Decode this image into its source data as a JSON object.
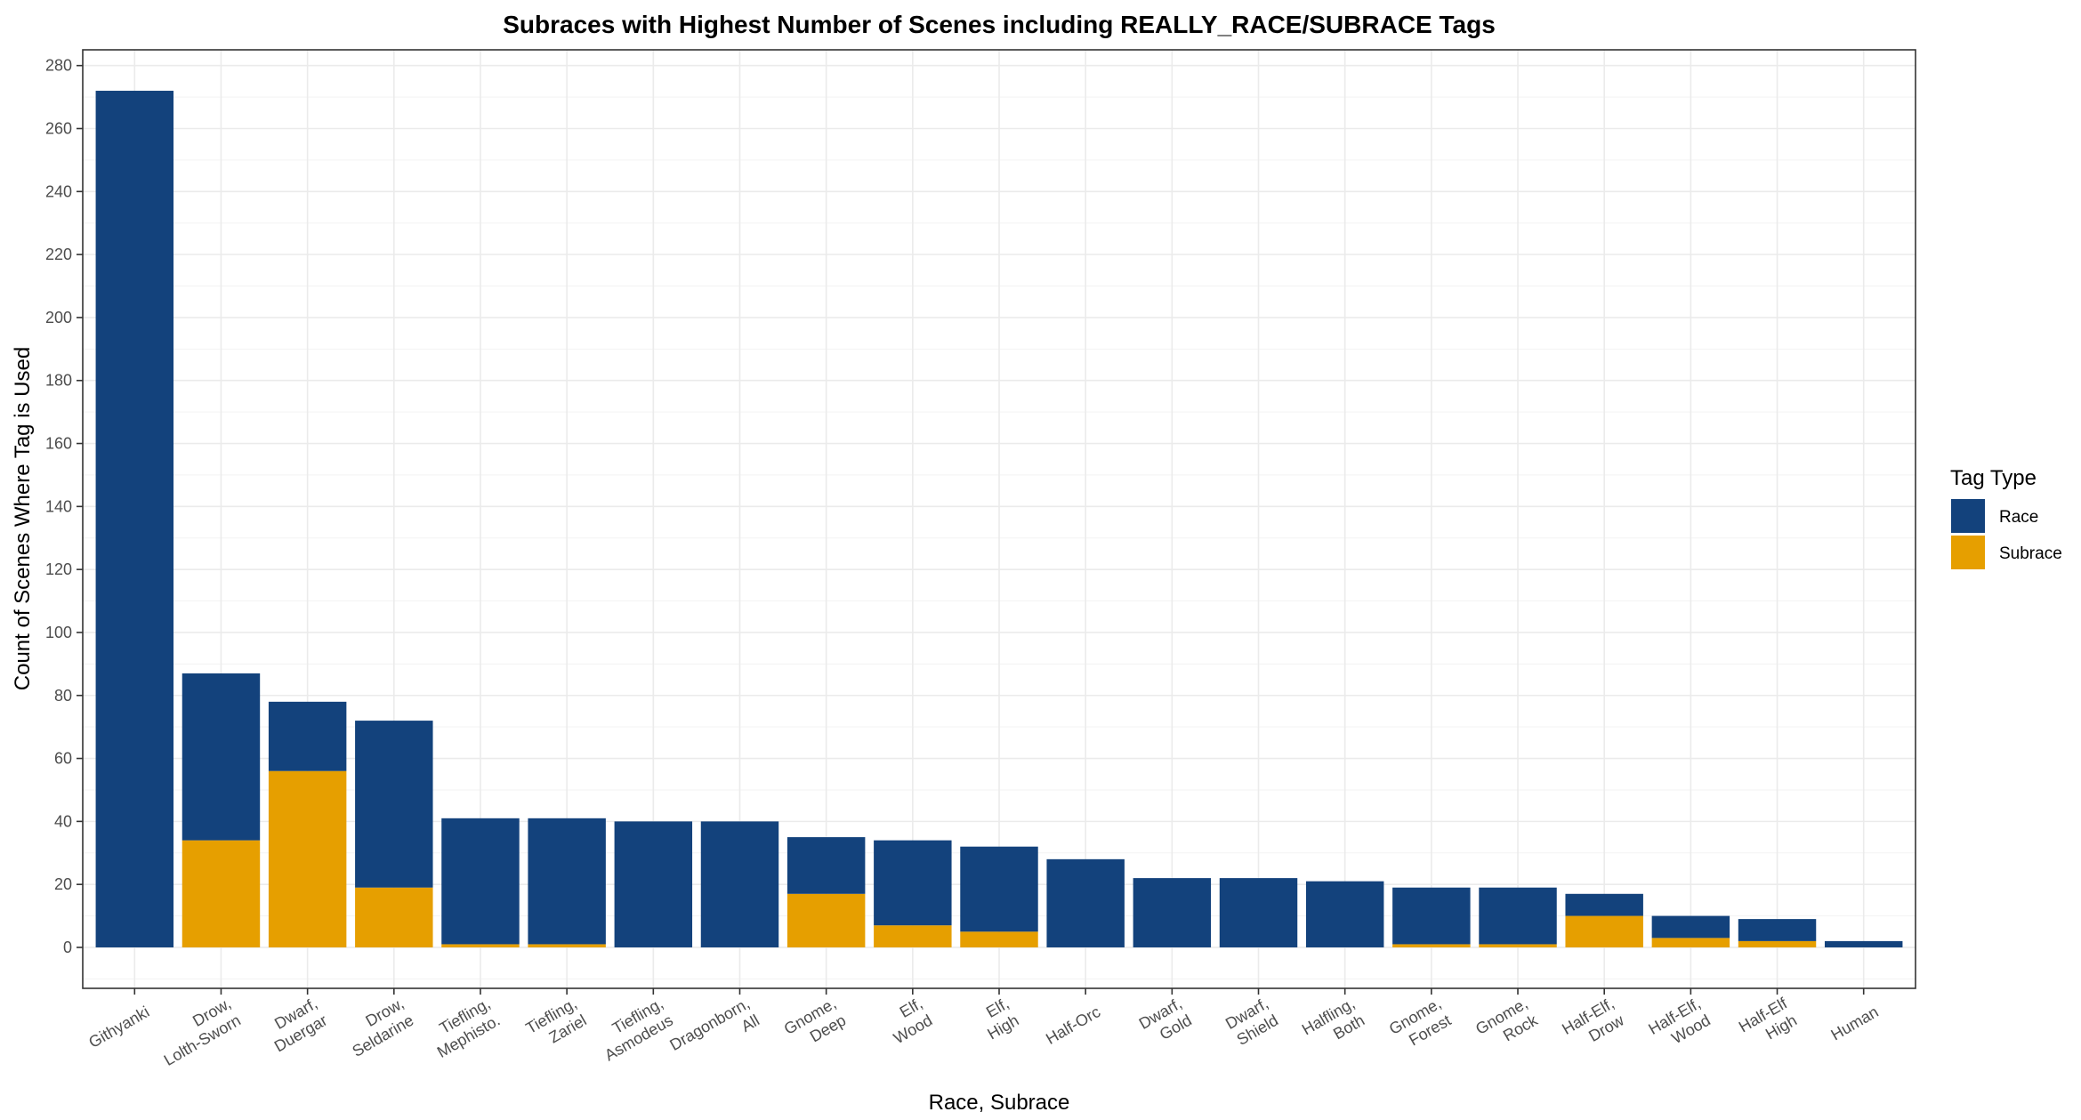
{
  "chart_data": {
    "type": "bar",
    "stacked": true,
    "title": "Subraces with Highest Number of Scenes including REALLY_RACE/SUBRACE Tags",
    "xlabel": "Race, Subrace",
    "ylabel": "Count of Scenes Where Tag is Used",
    "ylim": [
      -13,
      285
    ],
    "yticks": [
      0,
      20,
      40,
      60,
      80,
      100,
      120,
      140,
      160,
      180,
      200,
      220,
      240,
      260,
      280
    ],
    "grid": true,
    "categories": [
      [
        "Githyanki"
      ],
      [
        "Drow,",
        "Lolth-Sworn"
      ],
      [
        "Dwarf,",
        "Duergar"
      ],
      [
        "Drow,",
        "Seldarine"
      ],
      [
        "Tiefling,",
        "Mephisto."
      ],
      [
        "Tiefling,",
        "Zariel"
      ],
      [
        "Tiefling,",
        "Asmodeus"
      ],
      [
        "Dragonborn,",
        "All"
      ],
      [
        "Gnome,",
        "Deep"
      ],
      [
        "Elf,",
        "Wood"
      ],
      [
        "Elf,",
        "High"
      ],
      [
        "Half-Orc"
      ],
      [
        "Dwarf,",
        "Gold"
      ],
      [
        "Dwarf,",
        "Shield"
      ],
      [
        "Halfling,",
        "Both"
      ],
      [
        "Gnome,",
        "Forest"
      ],
      [
        "Gnome,",
        "Rock"
      ],
      [
        "Half-Elf,",
        "Drow"
      ],
      [
        "Half-Elf,",
        "Wood"
      ],
      [
        "Half-Elf",
        "High"
      ],
      [
        "Human"
      ]
    ],
    "series": [
      {
        "name": "Subrace",
        "color": "#E69F00",
        "values": [
          0,
          34,
          56,
          19,
          1,
          1,
          0,
          0,
          17,
          7,
          5,
          0,
          0,
          0,
          0,
          1,
          1,
          10,
          3,
          2,
          0
        ]
      },
      {
        "name": "Race",
        "color": "#13427C",
        "values": [
          272,
          53,
          22,
          53,
          40,
          40,
          40,
          40,
          18,
          27,
          27,
          28,
          22,
          22,
          21,
          18,
          18,
          7,
          7,
          7,
          2
        ]
      }
    ],
    "legend": {
      "title": "Tag Type",
      "position": "right",
      "entries": [
        {
          "label": "Race",
          "color": "#13427C"
        },
        {
          "label": "Subrace",
          "color": "#E69F00"
        }
      ]
    }
  }
}
